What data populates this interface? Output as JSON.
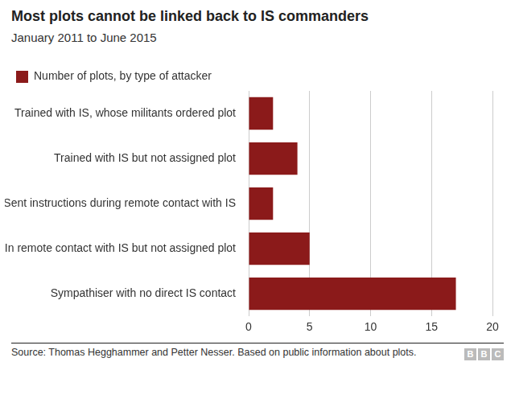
{
  "chart_data": {
    "type": "bar",
    "orientation": "horizontal",
    "title": "Most plots cannot be linked back to IS commanders",
    "subtitle": "January 2011 to June 2015",
    "categories": [
      "Trained with IS, whose militants ordered plot",
      "Trained with IS but not assigned plot",
      "Sent instructions during remote contact with IS",
      "In remote contact with IS but not assigned plot",
      "Sympathiser with no direct IS contact"
    ],
    "series": [
      {
        "name": "Number of plots, by type of attacker",
        "color": "#8b1a1a",
        "values": [
          2,
          4,
          2,
          5,
          17
        ]
      }
    ],
    "xlim": [
      0,
      20
    ],
    "xticks": [
      0,
      5,
      10,
      15,
      20
    ],
    "grid": true,
    "legend": "top-left",
    "source": "Source: Thomas Hegghammer and Petter Nesser. Based on public information about plots.",
    "logo": "BBC"
  }
}
